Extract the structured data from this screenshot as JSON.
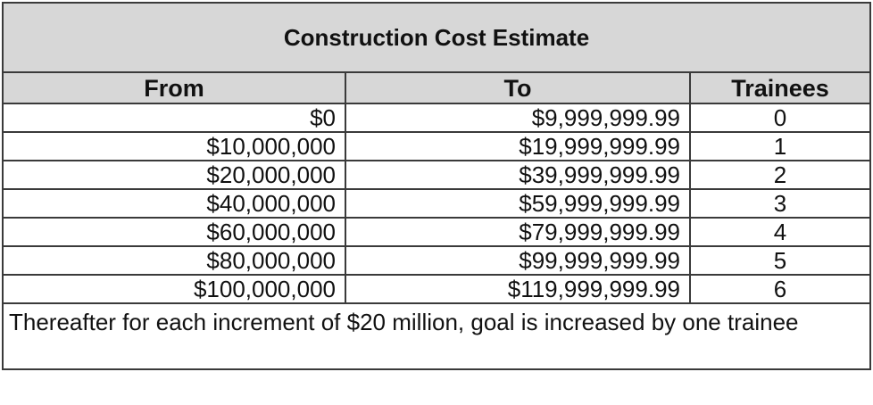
{
  "table": {
    "title": "Construction Cost Estimate",
    "headers": [
      "From",
      "To",
      "Trainees"
    ],
    "rows": [
      {
        "from": "$0",
        "to": "$9,999,999.99",
        "trainees": "0"
      },
      {
        "from": "$10,000,000",
        "to": "$19,999,999.99",
        "trainees": "1"
      },
      {
        "from": "$20,000,000",
        "to": "$39,999,999.99",
        "trainees": "2"
      },
      {
        "from": "$40,000,000",
        "to": "$59,999,999.99",
        "trainees": "3"
      },
      {
        "from": "$60,000,000",
        "to": "$79,999,999.99",
        "trainees": "4"
      },
      {
        "from": "$80,000,000",
        "to": "$99,999,999.99",
        "trainees": "5"
      },
      {
        "from": "$100,000,000",
        "to": "$119,999,999.99",
        "trainees": "6"
      }
    ],
    "note": "Thereafter for each increment of $20 million, goal is increased by one trainee"
  }
}
